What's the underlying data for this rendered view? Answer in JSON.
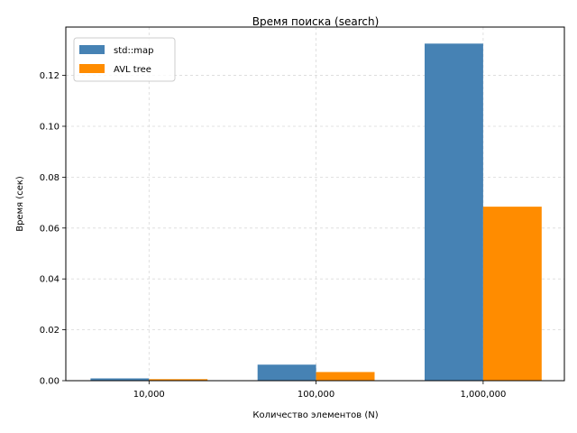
{
  "chart_data": {
    "type": "bar",
    "title": "Время поиска (search)",
    "xlabel": "Количество элементов (N)",
    "ylabel": "Время (сек)",
    "categories": [
      "10,000",
      "100,000",
      "1,000,000"
    ],
    "series": [
      {
        "name": "std::map",
        "values": [
          0.0009,
          0.0063,
          0.1325
        ],
        "color": "#4682b4"
      },
      {
        "name": "AVL tree",
        "values": [
          0.0006,
          0.0034,
          0.0684
        ],
        "color": "#ff8c00"
      }
    ],
    "ylim": [
      0,
      0.139
    ],
    "yticks": [
      0.0,
      0.02,
      0.04,
      0.06,
      0.08,
      0.1,
      0.12
    ],
    "ytick_labels": [
      "0.00",
      "0.02",
      "0.04",
      "0.06",
      "0.08",
      "0.10",
      "0.12"
    ],
    "grid": true,
    "legend_position": "top-left"
  }
}
